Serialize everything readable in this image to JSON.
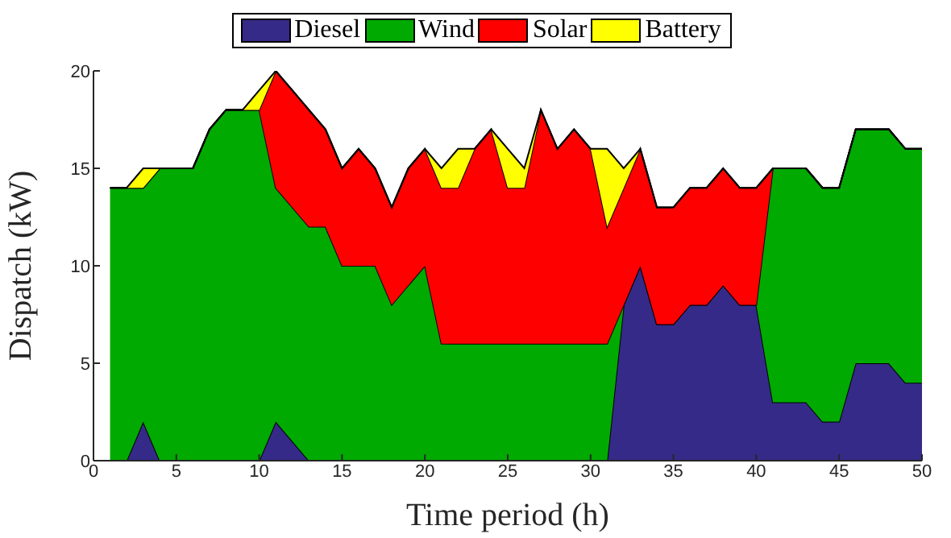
{
  "chart_data": {
    "type": "area",
    "stacked": true,
    "xlabel": "Time period (h)",
    "ylabel": "Dispatch (kW)",
    "x": [
      1,
      2,
      3,
      4,
      5,
      6,
      7,
      8,
      9,
      10,
      11,
      12,
      13,
      14,
      15,
      16,
      17,
      18,
      19,
      20,
      21,
      22,
      23,
      24,
      25,
      26,
      27,
      28,
      29,
      30,
      31,
      32,
      33,
      34,
      35,
      36,
      37,
      38,
      39,
      40,
      41,
      42,
      43,
      44,
      45,
      46,
      47,
      48,
      49,
      50
    ],
    "series": [
      {
        "name": "Diesel",
        "color": "#352a87",
        "values": [
          0,
          0,
          2,
          0,
          0,
          0,
          0,
          0,
          0,
          0,
          2,
          1,
          0,
          0,
          0,
          0,
          0,
          0,
          0,
          0,
          0,
          0,
          0,
          0,
          0,
          0,
          0,
          0,
          0,
          0,
          0,
          8,
          10,
          7,
          7,
          8,
          8,
          9,
          8,
          8,
          3,
          3,
          3,
          2,
          2,
          5,
          5,
          5,
          4,
          4
        ]
      },
      {
        "name": "Wind",
        "color": "#00aa00",
        "values": [
          14,
          14,
          12,
          15,
          15,
          15,
          17,
          18,
          18,
          18,
          12,
          12,
          12,
          12,
          10,
          10,
          10,
          8,
          9,
          10,
          6,
          6,
          6,
          6,
          6,
          6,
          6,
          6,
          6,
          6,
          6,
          0,
          0,
          0,
          0,
          0,
          0,
          0,
          0,
          0,
          12,
          12,
          12,
          12,
          12,
          12,
          12,
          12,
          12,
          12
        ]
      },
      {
        "name": "Solar",
        "color": "#ff0000",
        "values": [
          0,
          0,
          0,
          0,
          0,
          0,
          0,
          0,
          0,
          0,
          6,
          6,
          6,
          5,
          5,
          6,
          5,
          5,
          6,
          6,
          8,
          8,
          10,
          11,
          8,
          8,
          12,
          10,
          11,
          10,
          6,
          6,
          6,
          6,
          6,
          6,
          6,
          6,
          6,
          6,
          0,
          0,
          0,
          0,
          0,
          0,
          0,
          0,
          0,
          0
        ]
      },
      {
        "name": "Battery",
        "color": "#ffff00",
        "values": [
          0,
          0,
          1,
          0,
          0,
          0,
          0,
          0,
          0,
          1,
          0,
          0,
          0,
          0,
          0,
          0,
          0,
          0,
          0,
          0,
          1,
          2,
          0,
          0,
          2,
          1,
          0,
          0,
          0,
          0,
          4,
          1,
          0,
          0,
          0,
          0,
          0,
          0,
          0,
          0,
          0,
          0,
          0,
          0,
          0,
          0,
          0,
          0,
          0,
          0
        ]
      }
    ],
    "xlim": [
      0,
      50
    ],
    "xticks": [
      0,
      5,
      10,
      15,
      20,
      25,
      30,
      35,
      40,
      45,
      50
    ],
    "ylim": [
      0,
      20
    ],
    "yticks": [
      0,
      5,
      10,
      15,
      20
    ],
    "grid": false,
    "legend": "top"
  }
}
